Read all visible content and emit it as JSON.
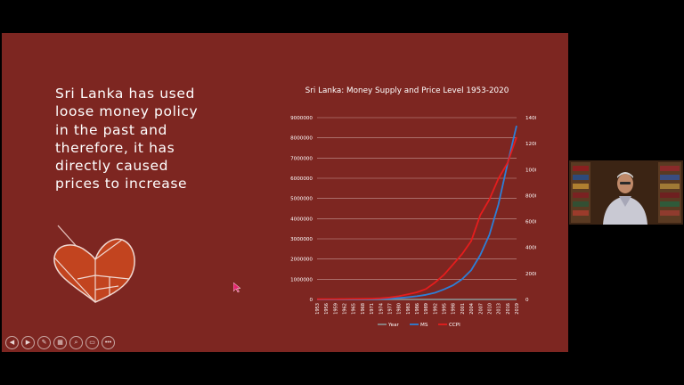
{
  "slide": {
    "text_lines": [
      "Sri Lanka has used",
      "loose money policy",
      "in the past and",
      "therefore, it has",
      "directly caused",
      "prices to increase"
    ]
  },
  "chart_data": {
    "type": "line",
    "title": "Sri Lanka: Money Supply and Price Level 1953-2020",
    "x_tick_labels": [
      "1953",
      "1956",
      "1959",
      "1962",
      "1965",
      "1968",
      "1971",
      "1974",
      "1977",
      "1980",
      "1983",
      "1986",
      "1989",
      "1992",
      "1995",
      "1998",
      "2001",
      "2004",
      "2007",
      "2010",
      "2013",
      "2016",
      "2019"
    ],
    "x": [
      1953,
      1956,
      1959,
      1962,
      1965,
      1968,
      1971,
      1974,
      1977,
      1980,
      1983,
      1986,
      1989,
      1992,
      1995,
      1998,
      2001,
      2004,
      2007,
      2010,
      2013,
      2016,
      2019
    ],
    "left_axis": {
      "ylim": [
        0,
        9000000
      ],
      "tick_labels": [
        "0",
        "1000000",
        "2000000",
        "3000000",
        "4000000",
        "5000000",
        "6000000",
        "7000000",
        "8000000",
        "9000000"
      ]
    },
    "right_axis": {
      "ylim": [
        0,
        14000
      ],
      "tick_labels": [
        "0",
        "2000",
        "4000",
        "6000",
        "8000",
        "10000",
        "12000",
        "14000"
      ]
    },
    "series": [
      {
        "name": "Year",
        "axis": "left",
        "color": "#8a8a8a",
        "values": [
          0,
          0,
          0,
          0,
          0,
          0,
          0,
          0,
          0,
          0,
          0,
          0,
          0,
          0,
          0,
          0,
          0,
          0,
          0,
          0,
          0,
          0,
          0
        ]
      },
      {
        "name": "MS",
        "axis": "left",
        "color": "#2d7fd6",
        "values": [
          0,
          1000,
          2000,
          3000,
          5000,
          8000,
          12000,
          20000,
          35000,
          70000,
          110000,
          160000,
          230000,
          330000,
          500000,
          700000,
          1000000,
          1450000,
          2200000,
          3200000,
          4700000,
          6700000,
          8600000
        ]
      },
      {
        "name": "CCPI",
        "axis": "right",
        "color": "#e51d1d",
        "values": [
          20,
          25,
          28,
          32,
          40,
          50,
          60,
          90,
          150,
          250,
          400,
          550,
          800,
          1300,
          1900,
          2700,
          3500,
          4500,
          6500,
          7700,
          9300,
          10500,
          12500
        ]
      }
    ],
    "legend_position": "bottom",
    "grid": true
  },
  "controls": [
    {
      "icon": "previous-slide-icon",
      "glyph": "◀"
    },
    {
      "icon": "next-slide-icon",
      "glyph": "▶"
    },
    {
      "icon": "pen-icon",
      "glyph": "✎"
    },
    {
      "icon": "all-slides-icon",
      "glyph": "▦"
    },
    {
      "icon": "zoom-icon",
      "glyph": "⌕"
    },
    {
      "icon": "subtitles-icon",
      "glyph": "▭"
    },
    {
      "icon": "more-options-icon",
      "glyph": "•••"
    }
  ]
}
